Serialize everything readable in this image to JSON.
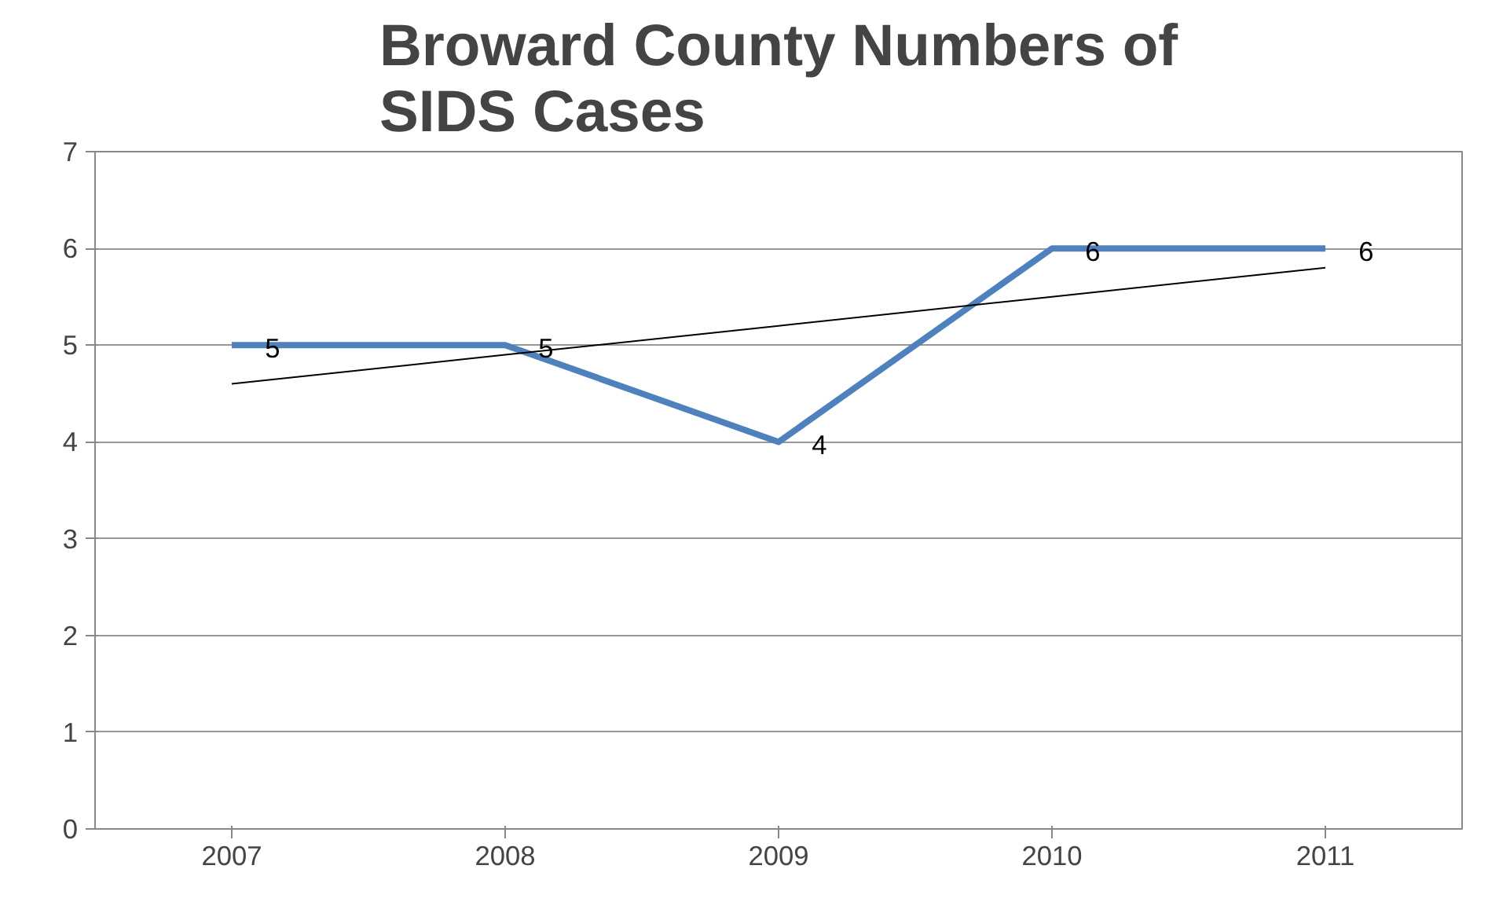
{
  "chart_data": {
    "type": "line",
    "title": "Broward County Numbers of\nSIDS Cases",
    "categories": [
      "2007",
      "2008",
      "2009",
      "2010",
      "2011"
    ],
    "series": [
      {
        "color": "#4f81bd",
        "values": [
          5,
          5,
          4,
          6,
          6
        ],
        "data_labels": true
      },
      {
        "color": "#000000",
        "values": [
          4.6,
          4.9,
          5.2,
          5.5,
          5.8
        ]
      }
    ],
    "ylim": [
      0,
      7
    ],
    "yticks": [
      0,
      1,
      2,
      3,
      4,
      5,
      6,
      7
    ],
    "grid": "y"
  }
}
